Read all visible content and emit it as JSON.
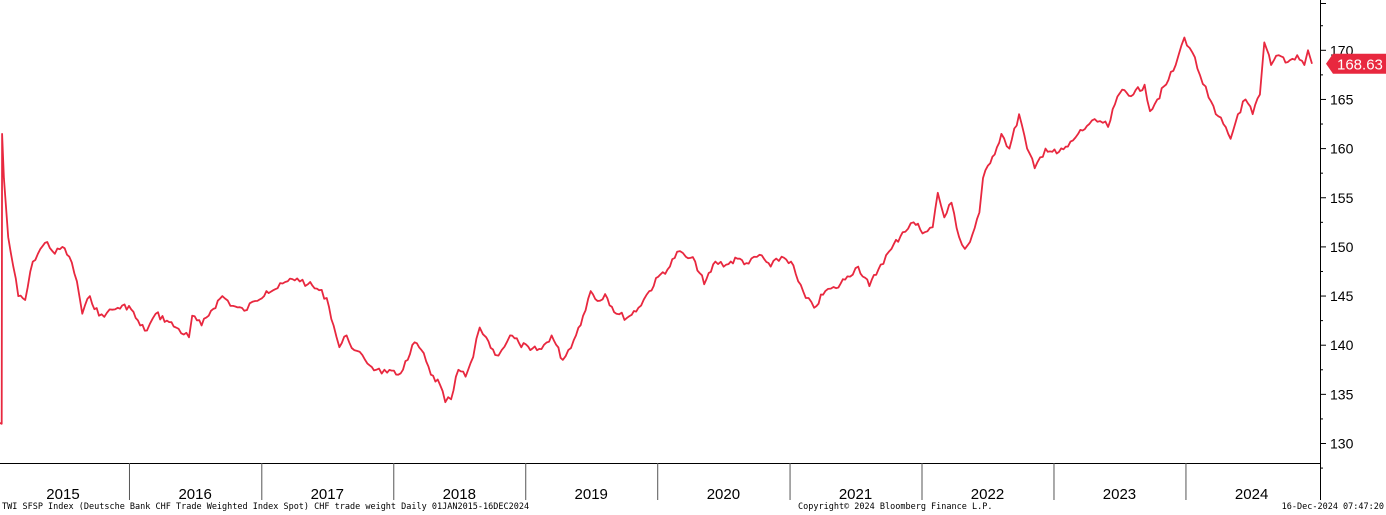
{
  "chart_data": {
    "type": "line",
    "title": "",
    "xlabel": "",
    "ylabel": "",
    "x_range": [
      "2015-01-01",
      "2024-12-16"
    ],
    "ylim": [
      126,
      175
    ],
    "y_ticks": [
      130,
      135,
      140,
      145,
      150,
      155,
      160,
      165,
      170
    ],
    "x_tick_labels": [
      "2015",
      "2016",
      "2017",
      "2018",
      "2019",
      "2020",
      "2021",
      "2022",
      "2023",
      "2024"
    ],
    "grid": false,
    "line_color": "#e8283f",
    "last_value_label": "168.63",
    "series": [
      {
        "name": "",
        "points": [
          [
            "2015-01-01",
            132.2
          ],
          [
            "2015-01-14",
            132.0
          ],
          [
            "2015-01-15",
            161.5
          ],
          [
            "2015-01-20",
            157.0
          ],
          [
            "2015-02-01",
            151.0
          ],
          [
            "2015-02-15",
            148.0
          ],
          [
            "2015-03-01",
            145.0
          ],
          [
            "2015-03-20",
            144.6
          ],
          [
            "2015-04-10",
            148.5
          ],
          [
            "2015-05-01",
            149.8
          ],
          [
            "2015-05-20",
            150.5
          ],
          [
            "2015-06-10",
            149.3
          ],
          [
            "2015-07-01",
            150.0
          ],
          [
            "2015-07-20",
            149.0
          ],
          [
            "2015-08-10",
            146.5
          ],
          [
            "2015-08-25",
            143.2
          ],
          [
            "2015-09-15",
            145.0
          ],
          [
            "2015-10-10",
            143.0
          ],
          [
            "2015-11-01",
            143.3
          ],
          [
            "2015-12-01",
            143.8
          ],
          [
            "2016-01-01",
            144.0
          ],
          [
            "2016-02-01",
            142.0
          ],
          [
            "2016-02-20",
            141.5
          ],
          [
            "2016-03-15",
            143.2
          ],
          [
            "2016-04-15",
            142.5
          ],
          [
            "2016-05-10",
            141.8
          ],
          [
            "2016-06-15",
            140.8
          ],
          [
            "2016-06-24",
            143.0
          ],
          [
            "2016-07-20",
            142.0
          ],
          [
            "2016-08-15",
            143.5
          ],
          [
            "2016-09-15",
            145.0
          ],
          [
            "2016-10-15",
            144.0
          ],
          [
            "2016-11-15",
            143.5
          ],
          [
            "2016-12-15",
            144.5
          ],
          [
            "2017-01-15",
            145.5
          ],
          [
            "2017-02-15",
            145.8
          ],
          [
            "2017-03-15",
            146.5
          ],
          [
            "2017-04-10",
            146.8
          ],
          [
            "2017-05-10",
            146.2
          ],
          [
            "2017-06-10",
            145.6
          ],
          [
            "2017-07-01",
            144.8
          ],
          [
            "2017-07-20",
            142.0
          ],
          [
            "2017-08-05",
            139.8
          ],
          [
            "2017-08-25",
            141.0
          ],
          [
            "2017-09-15",
            139.5
          ],
          [
            "2017-10-15",
            138.5
          ],
          [
            "2017-11-15",
            137.5
          ],
          [
            "2017-12-15",
            137.2
          ],
          [
            "2018-01-15",
            137.0
          ],
          [
            "2018-02-10",
            138.5
          ],
          [
            "2018-03-01",
            140.3
          ],
          [
            "2018-03-20",
            139.5
          ],
          [
            "2018-04-15",
            137.0
          ],
          [
            "2018-05-10",
            136.0
          ],
          [
            "2018-05-25",
            134.2
          ],
          [
            "2018-06-10",
            134.5
          ],
          [
            "2018-06-30",
            137.5
          ],
          [
            "2018-07-20",
            136.8
          ],
          [
            "2018-08-10",
            138.8
          ],
          [
            "2018-08-28",
            141.8
          ],
          [
            "2018-09-15",
            140.8
          ],
          [
            "2018-10-10",
            139.0
          ],
          [
            "2018-10-28",
            139.5
          ],
          [
            "2018-11-20",
            141.0
          ],
          [
            "2018-12-15",
            140.2
          ],
          [
            "2019-01-15",
            139.5
          ],
          [
            "2019-02-15",
            139.6
          ],
          [
            "2019-03-15",
            141.0
          ],
          [
            "2019-04-15",
            138.5
          ],
          [
            "2019-05-15",
            140.5
          ],
          [
            "2019-06-10",
            143.0
          ],
          [
            "2019-07-01",
            145.5
          ],
          [
            "2019-07-20",
            144.5
          ],
          [
            "2019-08-10",
            145.2
          ],
          [
            "2019-09-10",
            143.2
          ],
          [
            "2019-10-10",
            142.8
          ],
          [
            "2019-11-10",
            143.8
          ],
          [
            "2019-12-10",
            145.5
          ],
          [
            "2020-01-10",
            147.2
          ],
          [
            "2020-02-05",
            148.0
          ],
          [
            "2020-02-25",
            149.5
          ],
          [
            "2020-03-20",
            149.0
          ],
          [
            "2020-04-15",
            148.5
          ],
          [
            "2020-05-10",
            146.2
          ],
          [
            "2020-06-10",
            148.5
          ],
          [
            "2020-07-10",
            148.2
          ],
          [
            "2020-08-10",
            148.8
          ],
          [
            "2020-09-10",
            148.3
          ],
          [
            "2020-10-10",
            149.2
          ],
          [
            "2020-11-10",
            148.0
          ],
          [
            "2020-12-10",
            149.0
          ],
          [
            "2021-01-05",
            148.5
          ],
          [
            "2021-01-25",
            146.5
          ],
          [
            "2021-02-15",
            144.8
          ],
          [
            "2021-03-10",
            143.8
          ],
          [
            "2021-04-10",
            145.5
          ],
          [
            "2021-05-10",
            145.8
          ],
          [
            "2021-06-10",
            147.0
          ],
          [
            "2021-07-10",
            148.0
          ],
          [
            "2021-08-10",
            146.0
          ],
          [
            "2021-09-10",
            148.2
          ],
          [
            "2021-10-10",
            149.8
          ],
          [
            "2021-11-10",
            151.5
          ],
          [
            "2021-12-10",
            152.5
          ],
          [
            "2022-01-10",
            151.5
          ],
          [
            "2022-02-01",
            152.0
          ],
          [
            "2022-02-15",
            155.5
          ],
          [
            "2022-03-05",
            153.0
          ],
          [
            "2022-03-25",
            154.5
          ],
          [
            "2022-04-15",
            151.0
          ],
          [
            "2022-05-01",
            149.8
          ],
          [
            "2022-05-15",
            150.5
          ],
          [
            "2022-06-10",
            153.5
          ],
          [
            "2022-06-20",
            157.0
          ],
          [
            "2022-07-10",
            158.5
          ],
          [
            "2022-08-10",
            161.5
          ],
          [
            "2022-09-01",
            160.0
          ],
          [
            "2022-09-28",
            163.5
          ],
          [
            "2022-10-20",
            160.0
          ],
          [
            "2022-11-10",
            158.0
          ],
          [
            "2022-12-10",
            160.0
          ],
          [
            "2023-01-10",
            159.5
          ],
          [
            "2023-02-10",
            160.2
          ],
          [
            "2023-03-10",
            161.5
          ],
          [
            "2023-04-10",
            162.5
          ],
          [
            "2023-05-10",
            162.8
          ],
          [
            "2023-06-01",
            162.2
          ],
          [
            "2023-06-20",
            164.5
          ],
          [
            "2023-07-10",
            166.0
          ],
          [
            "2023-08-10",
            165.5
          ],
          [
            "2023-09-10",
            166.5
          ],
          [
            "2023-09-25",
            163.8
          ],
          [
            "2023-10-15",
            165.0
          ],
          [
            "2023-11-15",
            167.0
          ],
          [
            "2023-12-05",
            168.5
          ],
          [
            "2023-12-29",
            171.3
          ],
          [
            "2024-01-20",
            169.8
          ],
          [
            "2024-02-10",
            167.5
          ],
          [
            "2024-03-05",
            165.2
          ],
          [
            "2024-03-25",
            163.5
          ],
          [
            "2024-04-15",
            162.5
          ],
          [
            "2024-05-05",
            161.0
          ],
          [
            "2024-05-25",
            163.5
          ],
          [
            "2024-06-15",
            165.0
          ],
          [
            "2024-07-05",
            163.5
          ],
          [
            "2024-07-25",
            165.5
          ],
          [
            "2024-08-06",
            170.8
          ],
          [
            "2024-08-25",
            168.5
          ],
          [
            "2024-09-15",
            169.5
          ],
          [
            "2024-10-10",
            168.8
          ],
          [
            "2024-11-05",
            169.5
          ],
          [
            "2024-11-25",
            168.5
          ],
          [
            "2024-12-05",
            170.0
          ],
          [
            "2024-12-16",
            168.63
          ]
        ]
      }
    ]
  },
  "footer": {
    "left": "TWI SFSP Index (Deutsche Bank CHF Trade Weighted Index Spot) CHF trade weight  Daily 01JAN2015-16DEC2024",
    "center": "Copyright© 2024 Bloomberg Finance L.P.",
    "right": "16-Dec-2024 07:47:20"
  }
}
